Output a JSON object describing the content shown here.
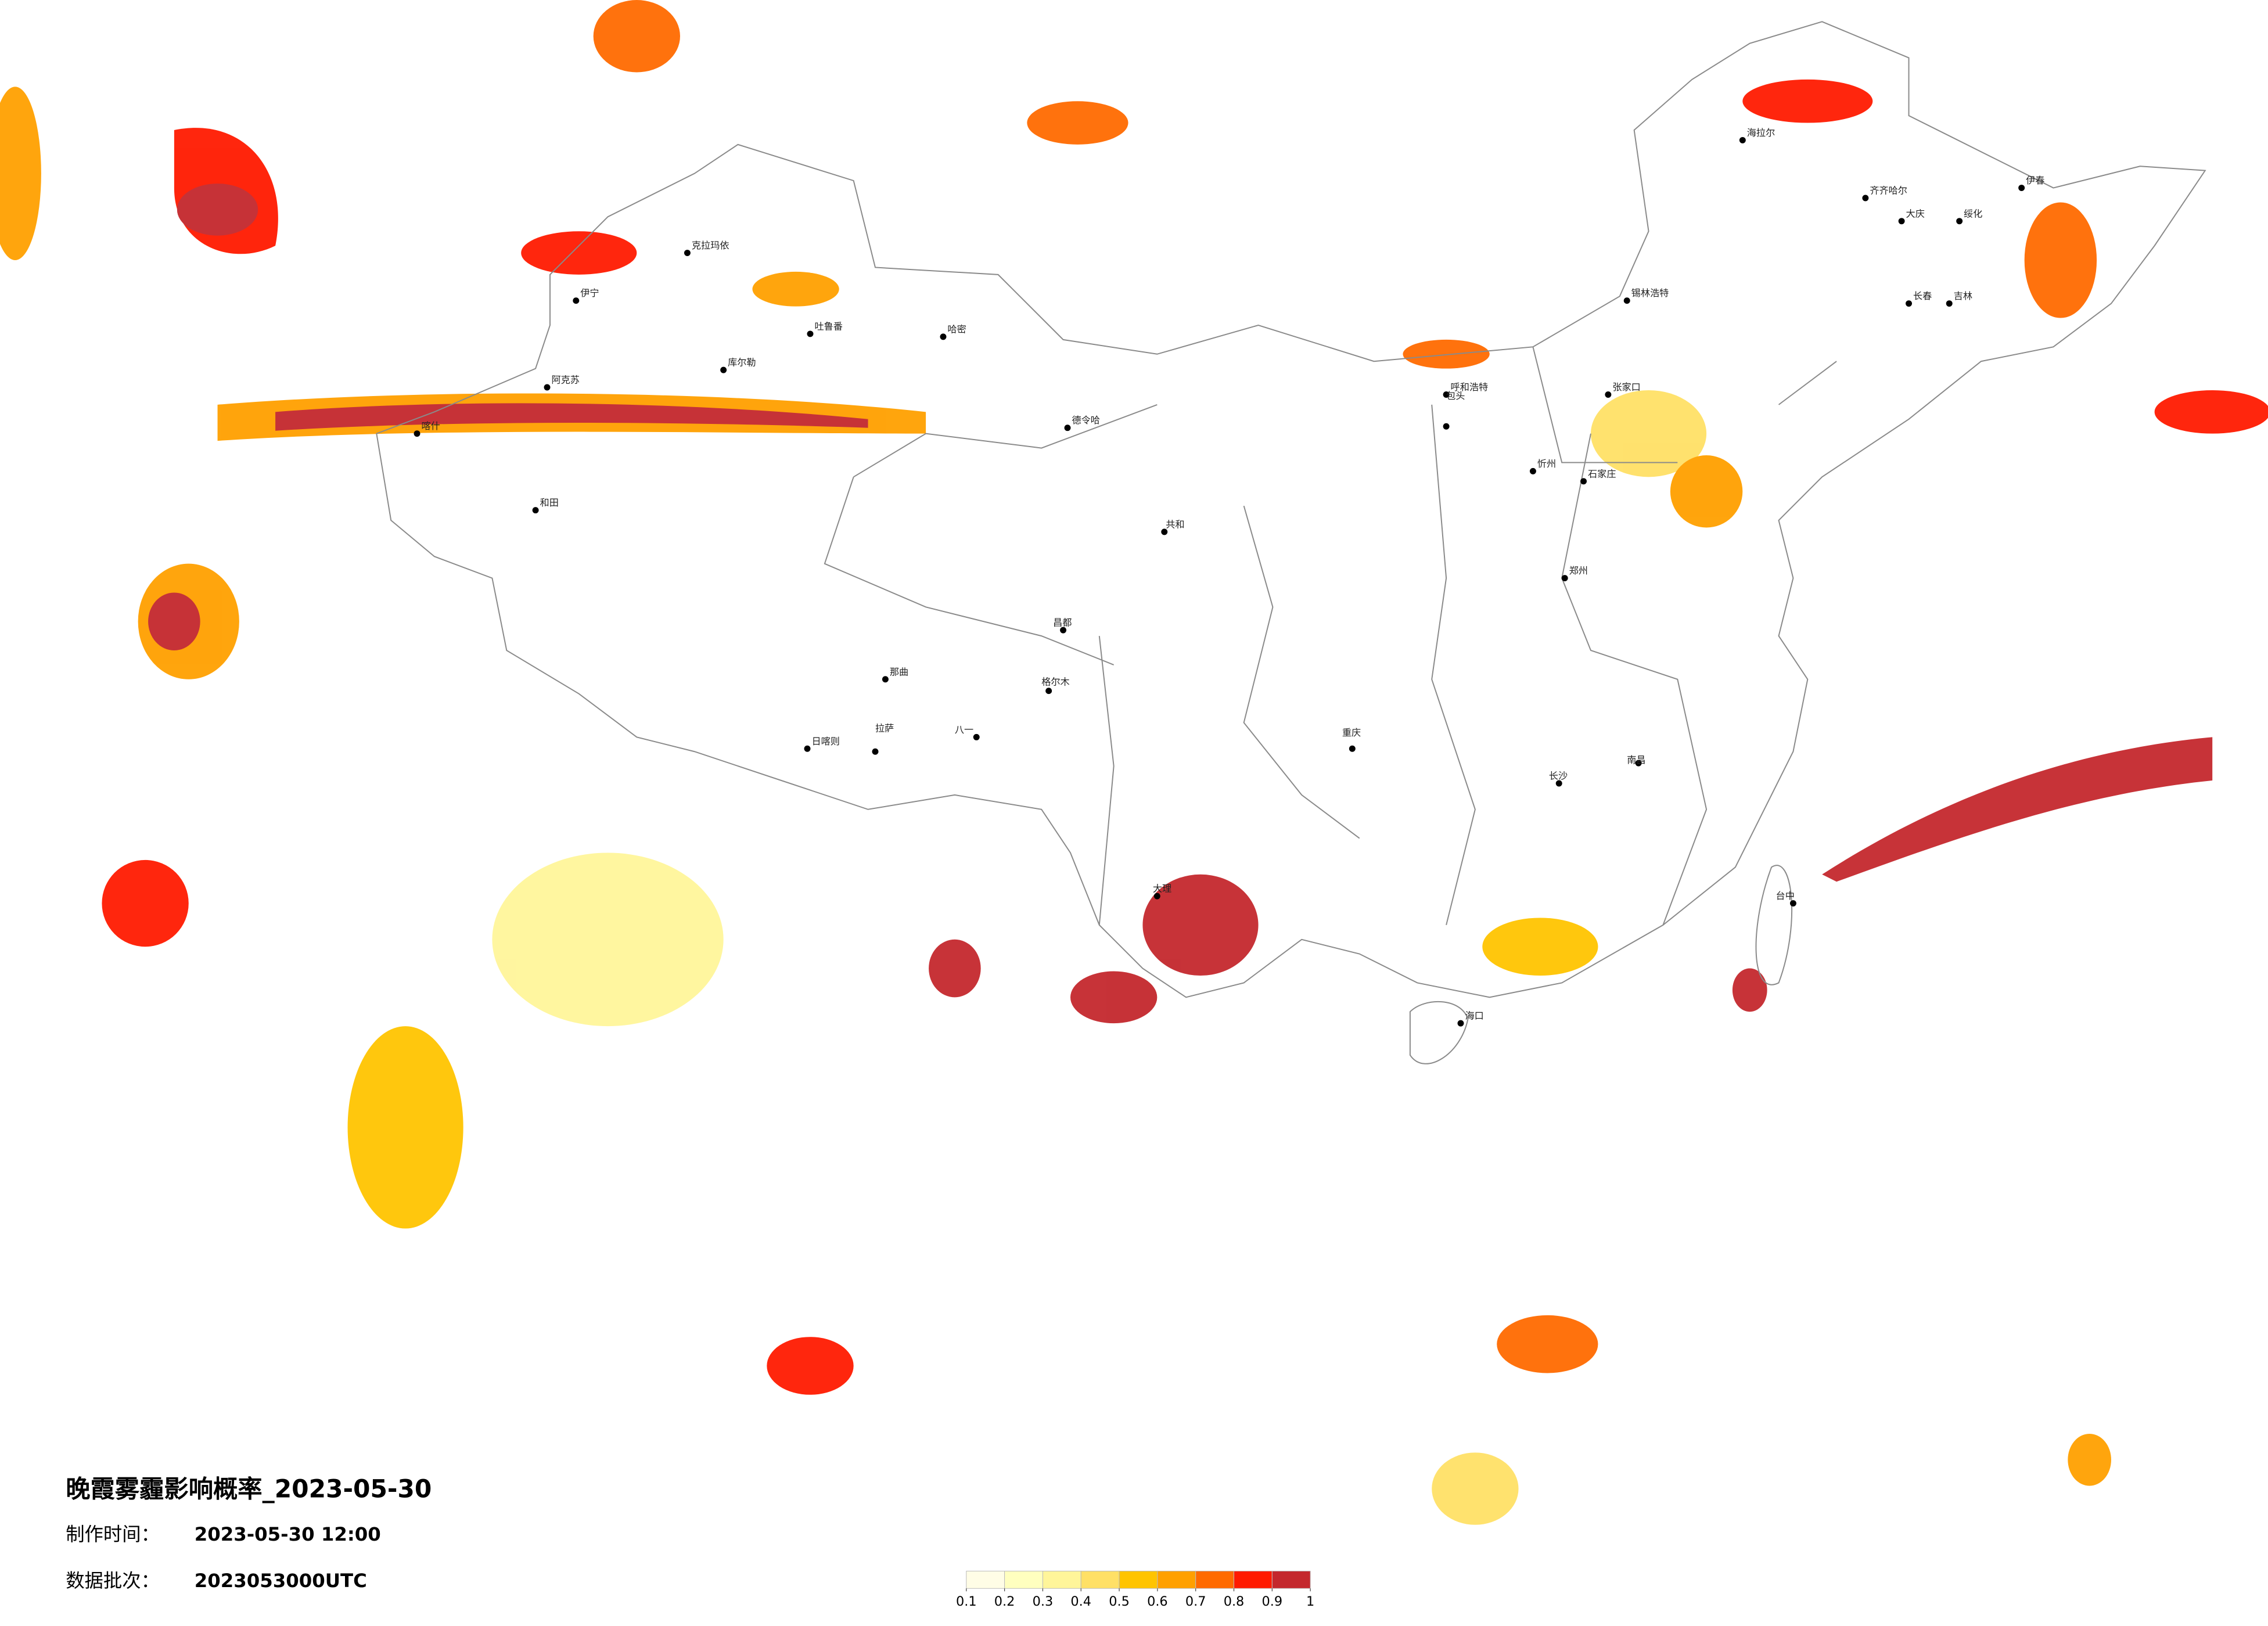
{
  "title": "晚霞雾霾影响概率_2023-05-30",
  "info": [
    {
      "label": "制作时间：",
      "value": "2023-05-30 12:00"
    },
    {
      "label": "数据批次：",
      "value": "2023053000UTC"
    }
  ],
  "legend": {
    "ticks": [
      0.1,
      0.2,
      0.3,
      0.4,
      0.5,
      0.6,
      0.7,
      0.8,
      0.9,
      1
    ],
    "colors": [
      "#fffde6",
      "#ffffbf",
      "#fff59a",
      "#ffe066",
      "#ffc400",
      "#ffa000",
      "#ff6a00",
      "#ff1a00",
      "#c4282d"
    ]
  },
  "cities": [
    "克拉玛依",
    "伊宁",
    "阿克苏",
    "喀什",
    "和田",
    "吐鲁番",
    "哈密",
    "库尔勒",
    "格尔木",
    "德令哈",
    "日喀则",
    "拉萨",
    "那曲",
    "昌都",
    "八一",
    "共和",
    "锡林浩特",
    "海拉尔",
    "齐齐哈尔",
    "大庆",
    "绥化",
    "长春",
    "吉林",
    "呼和浩特",
    "包头",
    "张家口",
    "石家庄",
    "忻州",
    "郑州",
    "长沙",
    "南昌",
    "重庆",
    "大理",
    "海口",
    "台中",
    "伊春"
  ]
}
